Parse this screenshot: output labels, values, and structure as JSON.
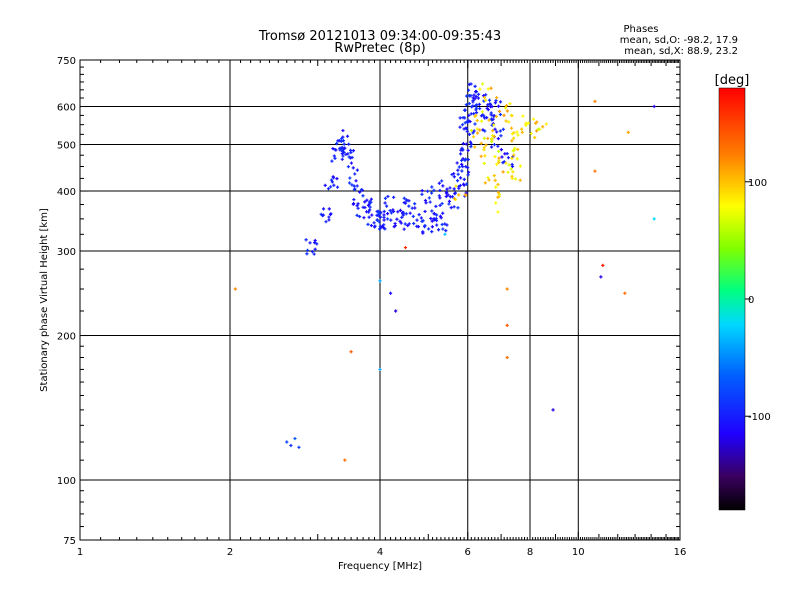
{
  "chart_data": {
    "type": "scatter",
    "title": "Tromsø 20121013 09:34:00-09:35:43",
    "subtitle": "RwPretec (8p)",
    "xlabel": "Frequency [MHz]",
    "ylabel": "Stationary phase Virtual Height [km]",
    "x_scale": "log",
    "y_scale": "log",
    "xlim": [
      1,
      16
    ],
    "ylim": [
      75,
      750
    ],
    "x_ticks": [
      1,
      2,
      4,
      6,
      8,
      10,
      16
    ],
    "y_ticks": [
      75,
      100,
      200,
      300,
      400,
      500,
      600,
      750
    ],
    "grid": true,
    "stats": {
      "heading": "Phases",
      "line1": "mean, sd,O: -98.2, 17.9",
      "line2": "mean, sd,X:  88.9, 23.2"
    },
    "colorbar": {
      "label": "[deg]",
      "range": [
        -180,
        180
      ],
      "ticks": [
        100,
        0,
        -100
      ],
      "tick_labels": [
        "100",
        "0",
        "-100"
      ],
      "colormap": "rainbow"
    },
    "o_trace": [
      [
        2.9,
        305
      ],
      [
        3.1,
        360
      ],
      [
        3.2,
        420
      ],
      [
        3.3,
        470
      ],
      [
        3.35,
        500
      ],
      [
        3.4,
        510
      ],
      [
        3.45,
        480
      ],
      [
        3.5,
        430
      ],
      [
        3.6,
        390
      ],
      [
        3.7,
        365
      ],
      [
        3.9,
        355
      ],
      [
        4.1,
        350
      ],
      [
        4.4,
        350
      ],
      [
        4.8,
        352
      ],
      [
        5.2,
        360
      ],
      [
        5.6,
        380
      ],
      [
        5.8,
        410
      ],
      [
        5.9,
        450
      ],
      [
        6.0,
        520
      ],
      [
        6.05,
        580
      ],
      [
        6.1,
        620
      ],
      [
        6.3,
        600
      ],
      [
        6.6,
        560
      ],
      [
        6.9,
        520
      ],
      [
        7.2,
        470
      ],
      [
        3.8,
        370
      ],
      [
        4.2,
        375
      ],
      [
        4.6,
        380
      ],
      [
        5.0,
        390
      ],
      [
        5.4,
        400
      ],
      [
        5.7,
        430
      ],
      [
        5.85,
        480
      ],
      [
        5.95,
        560
      ],
      [
        6.2,
        640
      ],
      [
        6.5,
        610
      ],
      [
        6.8,
        590
      ],
      [
        4.0,
        340
      ],
      [
        4.5,
        345
      ],
      [
        5.0,
        342
      ],
      [
        5.3,
        348
      ]
    ],
    "x_trace": [
      [
        6.3,
        560
      ],
      [
        6.6,
        540
      ],
      [
        6.9,
        500
      ],
      [
        7.2,
        460
      ],
      [
        7.5,
        430
      ],
      [
        7.0,
        600
      ],
      [
        6.5,
        640
      ],
      [
        7.3,
        580
      ],
      [
        7.6,
        470
      ],
      [
        6.2,
        520
      ],
      [
        6.4,
        480
      ],
      [
        6.7,
        410
      ],
      [
        7.0,
        380
      ],
      [
        6.8,
        450
      ],
      [
        7.4,
        520
      ],
      [
        7.8,
        550
      ],
      [
        8.1,
        540
      ],
      [
        8.4,
        560
      ],
      [
        5.8,
        400
      ]
    ],
    "scatter": [
      {
        "x": 2.05,
        "y": 250,
        "phase": 120
      },
      {
        "x": 2.6,
        "y": 120,
        "phase": -80
      },
      {
        "x": 2.65,
        "y": 118,
        "phase": -90
      },
      {
        "x": 2.7,
        "y": 122,
        "phase": -70
      },
      {
        "x": 2.75,
        "y": 117,
        "phase": -85
      },
      {
        "x": 3.4,
        "y": 110,
        "phase": 130
      },
      {
        "x": 3.5,
        "y": 185,
        "phase": 140
      },
      {
        "x": 4.0,
        "y": 170,
        "phase": -40
      },
      {
        "x": 4.0,
        "y": 260,
        "phase": -40
      },
      {
        "x": 4.2,
        "y": 245,
        "phase": -110
      },
      {
        "x": 4.3,
        "y": 225,
        "phase": -120
      },
      {
        "x": 4.5,
        "y": 305,
        "phase": 160
      },
      {
        "x": 5.4,
        "y": 325,
        "phase": -30
      },
      {
        "x": 7.2,
        "y": 210,
        "phase": 140
      },
      {
        "x": 7.2,
        "y": 180,
        "phase": 130
      },
      {
        "x": 7.2,
        "y": 250,
        "phase": 120
      },
      {
        "x": 8.9,
        "y": 140,
        "phase": -120
      },
      {
        "x": 10.8,
        "y": 615,
        "phase": 120
      },
      {
        "x": 10.8,
        "y": 440,
        "phase": 130
      },
      {
        "x": 11.2,
        "y": 280,
        "phase": 170
      },
      {
        "x": 11.1,
        "y": 265,
        "phase": -120
      },
      {
        "x": 12.4,
        "y": 245,
        "phase": 130
      },
      {
        "x": 12.6,
        "y": 530,
        "phase": 110
      },
      {
        "x": 14.2,
        "y": 600,
        "phase": -120
      },
      {
        "x": 14.2,
        "y": 350,
        "phase": -20
      }
    ]
  }
}
